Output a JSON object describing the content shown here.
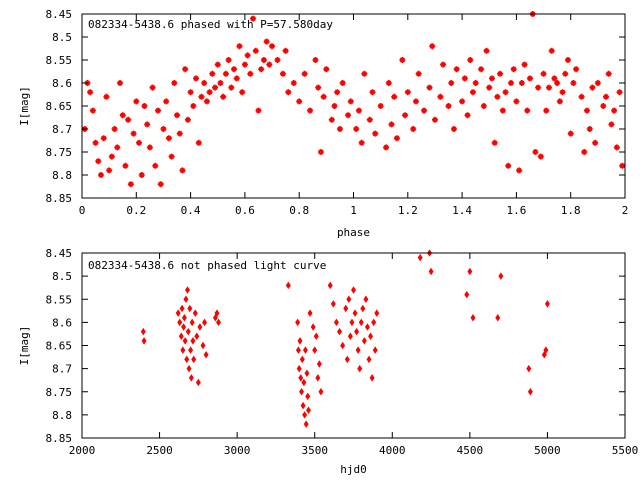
{
  "chart_data": [
    {
      "type": "scatter",
      "title": "082334-5438.6 phased with P=57.580day",
      "xlabel": "phase",
      "ylabel": "I[mag]",
      "xlim": [
        0,
        2
      ],
      "ylim": [
        8.45,
        8.85
      ],
      "y_inverted": true,
      "x_ticks": [
        "0",
        "0.2",
        "0.4",
        "0.6",
        "0.8",
        "1",
        "1.2",
        "1.4",
        "1.6",
        "1.8",
        "2"
      ],
      "y_ticks": [
        "8.45",
        "8.5",
        "8.55",
        "8.6",
        "8.65",
        "8.7",
        "8.75",
        "8.8",
        "8.85"
      ],
      "marker_color": "#ff0000",
      "marker": "plus",
      "points": [
        [
          0.01,
          8.7
        ],
        [
          0.02,
          8.6
        ],
        [
          0.03,
          8.62
        ],
        [
          0.04,
          8.66
        ],
        [
          0.05,
          8.73
        ],
        [
          0.06,
          8.77
        ],
        [
          0.07,
          8.8
        ],
        [
          0.08,
          8.72
        ],
        [
          0.09,
          8.63
        ],
        [
          0.1,
          8.79
        ],
        [
          0.11,
          8.76
        ],
        [
          0.12,
          8.7
        ],
        [
          0.13,
          8.74
        ],
        [
          0.14,
          8.6
        ],
        [
          0.15,
          8.67
        ],
        [
          0.16,
          8.78
        ],
        [
          0.17,
          8.68
        ],
        [
          0.18,
          8.82
        ],
        [
          0.19,
          8.71
        ],
        [
          0.2,
          8.64
        ],
        [
          0.21,
          8.73
        ],
        [
          0.22,
          8.8
        ],
        [
          0.23,
          8.65
        ],
        [
          0.24,
          8.69
        ],
        [
          0.25,
          8.74
        ],
        [
          0.26,
          8.61
        ],
        [
          0.27,
          8.78
        ],
        [
          0.28,
          8.66
        ],
        [
          0.29,
          8.82
        ],
        [
          0.3,
          8.7
        ],
        [
          0.31,
          8.64
        ],
        [
          0.32,
          8.72
        ],
        [
          0.33,
          8.76
        ],
        [
          0.34,
          8.6
        ],
        [
          0.35,
          8.67
        ],
        [
          0.36,
          8.71
        ],
        [
          0.37,
          8.79
        ],
        [
          0.38,
          8.57
        ],
        [
          0.39,
          8.68
        ],
        [
          0.4,
          8.62
        ],
        [
          0.41,
          8.65
        ],
        [
          0.42,
          8.59
        ],
        [
          0.43,
          8.73
        ],
        [
          0.44,
          8.63
        ],
        [
          0.45,
          8.6
        ],
        [
          0.46,
          8.64
        ],
        [
          0.47,
          8.62
        ],
        [
          0.48,
          8.58
        ],
        [
          0.49,
          8.61
        ],
        [
          0.5,
          8.56
        ],
        [
          0.51,
          8.6
        ],
        [
          0.52,
          8.63
        ],
        [
          0.53,
          8.58
        ],
        [
          0.54,
          8.55
        ],
        [
          0.55,
          8.61
        ],
        [
          0.56,
          8.57
        ],
        [
          0.57,
          8.59
        ],
        [
          0.58,
          8.52
        ],
        [
          0.59,
          8.62
        ],
        [
          0.6,
          8.56
        ],
        [
          0.61,
          8.54
        ],
        [
          0.62,
          8.58
        ],
        [
          0.63,
          8.46
        ],
        [
          0.64,
          8.53
        ],
        [
          0.65,
          8.66
        ],
        [
          0.66,
          8.57
        ],
        [
          0.67,
          8.55
        ],
        [
          0.68,
          8.51
        ],
        [
          0.69,
          8.56
        ],
        [
          0.7,
          8.52
        ],
        [
          0.72,
          8.55
        ],
        [
          0.74,
          8.58
        ],
        [
          0.75,
          8.53
        ],
        [
          0.76,
          8.62
        ],
        [
          0.78,
          8.6
        ],
        [
          0.8,
          8.64
        ],
        [
          0.82,
          8.58
        ],
        [
          0.84,
          8.66
        ],
        [
          0.86,
          8.55
        ],
        [
          0.87,
          8.61
        ],
        [
          0.88,
          8.75
        ],
        [
          0.89,
          8.63
        ],
        [
          0.9,
          8.57
        ],
        [
          0.92,
          8.68
        ],
        [
          0.93,
          8.65
        ],
        [
          0.94,
          8.62
        ],
        [
          0.95,
          8.7
        ],
        [
          0.96,
          8.6
        ],
        [
          0.98,
          8.67
        ],
        [
          0.99,
          8.64
        ],
        [
          1.01,
          8.7
        ],
        [
          1.02,
          8.66
        ],
        [
          1.03,
          8.73
        ],
        [
          1.04,
          8.58
        ],
        [
          1.06,
          8.68
        ],
        [
          1.07,
          8.62
        ],
        [
          1.08,
          8.71
        ],
        [
          1.1,
          8.65
        ],
        [
          1.12,
          8.74
        ],
        [
          1.13,
          8.6
        ],
        [
          1.14,
          8.69
        ],
        [
          1.15,
          8.63
        ],
        [
          1.16,
          8.72
        ],
        [
          1.18,
          8.55
        ],
        [
          1.19,
          8.67
        ],
        [
          1.2,
          8.62
        ],
        [
          1.22,
          8.7
        ],
        [
          1.23,
          8.64
        ],
        [
          1.24,
          8.58
        ],
        [
          1.26,
          8.66
        ],
        [
          1.28,
          8.61
        ],
        [
          1.29,
          8.52
        ],
        [
          1.3,
          8.68
        ],
        [
          1.32,
          8.63
        ],
        [
          1.33,
          8.56
        ],
        [
          1.35,
          8.65
        ],
        [
          1.36,
          8.6
        ],
        [
          1.37,
          8.7
        ],
        [
          1.38,
          8.57
        ],
        [
          1.4,
          8.64
        ],
        [
          1.41,
          8.59
        ],
        [
          1.42,
          8.67
        ],
        [
          1.43,
          8.55
        ],
        [
          1.44,
          8.62
        ],
        [
          1.45,
          8.6
        ],
        [
          1.47,
          8.57
        ],
        [
          1.48,
          8.65
        ],
        [
          1.49,
          8.53
        ],
        [
          1.5,
          8.61
        ],
        [
          1.51,
          8.59
        ],
        [
          1.52,
          8.73
        ],
        [
          1.53,
          8.63
        ],
        [
          1.54,
          8.58
        ],
        [
          1.55,
          8.66
        ],
        [
          1.56,
          8.62
        ],
        [
          1.57,
          8.78
        ],
        [
          1.58,
          8.6
        ],
        [
          1.59,
          8.57
        ],
        [
          1.6,
          8.64
        ],
        [
          1.61,
          8.79
        ],
        [
          1.62,
          8.6
        ],
        [
          1.63,
          8.56
        ],
        [
          1.64,
          8.66
        ],
        [
          1.65,
          8.59
        ],
        [
          1.66,
          8.45
        ],
        [
          1.67,
          8.75
        ],
        [
          1.68,
          8.61
        ],
        [
          1.69,
          8.76
        ],
        [
          1.7,
          8.58
        ],
        [
          1.71,
          8.66
        ],
        [
          1.72,
          8.61
        ],
        [
          1.73,
          8.53
        ],
        [
          1.74,
          8.59
        ],
        [
          1.75,
          8.6
        ],
        [
          1.76,
          8.64
        ],
        [
          1.77,
          8.62
        ],
        [
          1.78,
          8.58
        ],
        [
          1.79,
          8.55
        ],
        [
          1.8,
          8.71
        ],
        [
          1.81,
          8.6
        ],
        [
          1.82,
          8.57
        ],
        [
          1.84,
          8.63
        ],
        [
          1.85,
          8.75
        ],
        [
          1.86,
          8.66
        ],
        [
          1.87,
          8.7
        ],
        [
          1.88,
          8.61
        ],
        [
          1.89,
          8.73
        ],
        [
          1.9,
          8.6
        ],
        [
          1.92,
          8.65
        ],
        [
          1.93,
          8.63
        ],
        [
          1.94,
          8.58
        ],
        [
          1.95,
          8.69
        ],
        [
          1.96,
          8.66
        ],
        [
          1.97,
          8.74
        ],
        [
          1.98,
          8.62
        ],
        [
          1.99,
          8.78
        ]
      ]
    },
    {
      "type": "scatter",
      "title": "082334-5438.6 not phased light curve",
      "xlabel": "hjd0",
      "ylabel": "I[mag]",
      "xlim": [
        2000,
        5500
      ],
      "ylim": [
        8.45,
        8.85
      ],
      "y_inverted": true,
      "x_ticks": [
        "2000",
        "2500",
        "3000",
        "3500",
        "4000",
        "4500",
        "5000",
        "5500"
      ],
      "y_ticks": [
        "8.45",
        "8.5",
        "8.55",
        "8.6",
        "8.65",
        "8.7",
        "8.75",
        "8.8",
        "8.85"
      ],
      "marker_color": "#ff0000",
      "marker": "diamond",
      "points": [
        [
          2395,
          8.62
        ],
        [
          2400,
          8.64
        ],
        [
          2620,
          8.58
        ],
        [
          2630,
          8.6
        ],
        [
          2640,
          8.63
        ],
        [
          2645,
          8.57
        ],
        [
          2650,
          8.66
        ],
        [
          2655,
          8.61
        ],
        [
          2660,
          8.59
        ],
        [
          2665,
          8.64
        ],
        [
          2670,
          8.55
        ],
        [
          2675,
          8.68
        ],
        [
          2680,
          8.53
        ],
        [
          2685,
          8.62
        ],
        [
          2690,
          8.7
        ],
        [
          2695,
          8.57
        ],
        [
          2700,
          8.66
        ],
        [
          2705,
          8.72
        ],
        [
          2710,
          8.6
        ],
        [
          2715,
          8.64
        ],
        [
          2720,
          8.68
        ],
        [
          2730,
          8.58
        ],
        [
          2740,
          8.63
        ],
        [
          2750,
          8.73
        ],
        [
          2760,
          8.61
        ],
        [
          2780,
          8.65
        ],
        [
          2790,
          8.6
        ],
        [
          2800,
          8.67
        ],
        [
          2860,
          8.59
        ],
        [
          2870,
          8.58
        ],
        [
          2880,
          8.6
        ],
        [
          3330,
          8.52
        ],
        [
          3390,
          8.6
        ],
        [
          3395,
          8.66
        ],
        [
          3400,
          8.7
        ],
        [
          3405,
          8.64
        ],
        [
          3410,
          8.72
        ],
        [
          3415,
          8.75
        ],
        [
          3420,
          8.68
        ],
        [
          3425,
          8.78
        ],
        [
          3430,
          8.73
        ],
        [
          3435,
          8.8
        ],
        [
          3440,
          8.66
        ],
        [
          3445,
          8.82
        ],
        [
          3450,
          8.71
        ],
        [
          3455,
          8.76
        ],
        [
          3460,
          8.79
        ],
        [
          3470,
          8.58
        ],
        [
          3490,
          8.61
        ],
        [
          3500,
          8.66
        ],
        [
          3510,
          8.63
        ],
        [
          3520,
          8.72
        ],
        [
          3530,
          8.69
        ],
        [
          3540,
          8.75
        ],
        [
          3600,
          8.52
        ],
        [
          3620,
          8.56
        ],
        [
          3640,
          8.6
        ],
        [
          3660,
          8.62
        ],
        [
          3680,
          8.65
        ],
        [
          3700,
          8.57
        ],
        [
          3710,
          8.68
        ],
        [
          3720,
          8.55
        ],
        [
          3730,
          8.63
        ],
        [
          3740,
          8.6
        ],
        [
          3750,
          8.53
        ],
        [
          3760,
          8.58
        ],
        [
          3770,
          8.62
        ],
        [
          3780,
          8.66
        ],
        [
          3790,
          8.7
        ],
        [
          3800,
          8.6
        ],
        [
          3810,
          8.57
        ],
        [
          3820,
          8.64
        ],
        [
          3830,
          8.55
        ],
        [
          3840,
          8.61
        ],
        [
          3850,
          8.68
        ],
        [
          3860,
          8.63
        ],
        [
          3870,
          8.72
        ],
        [
          3880,
          8.6
        ],
        [
          3890,
          8.66
        ],
        [
          3900,
          8.58
        ],
        [
          4180,
          8.46
        ],
        [
          4240,
          8.45
        ],
        [
          4250,
          8.49
        ],
        [
          4480,
          8.54
        ],
        [
          4500,
          8.49
        ],
        [
          4520,
          8.59
        ],
        [
          4680,
          8.59
        ],
        [
          4700,
          8.5
        ],
        [
          4880,
          8.7
        ],
        [
          4890,
          8.75
        ],
        [
          4980,
          8.67
        ],
        [
          4990,
          8.66
        ],
        [
          5000,
          8.56
        ]
      ]
    }
  ]
}
